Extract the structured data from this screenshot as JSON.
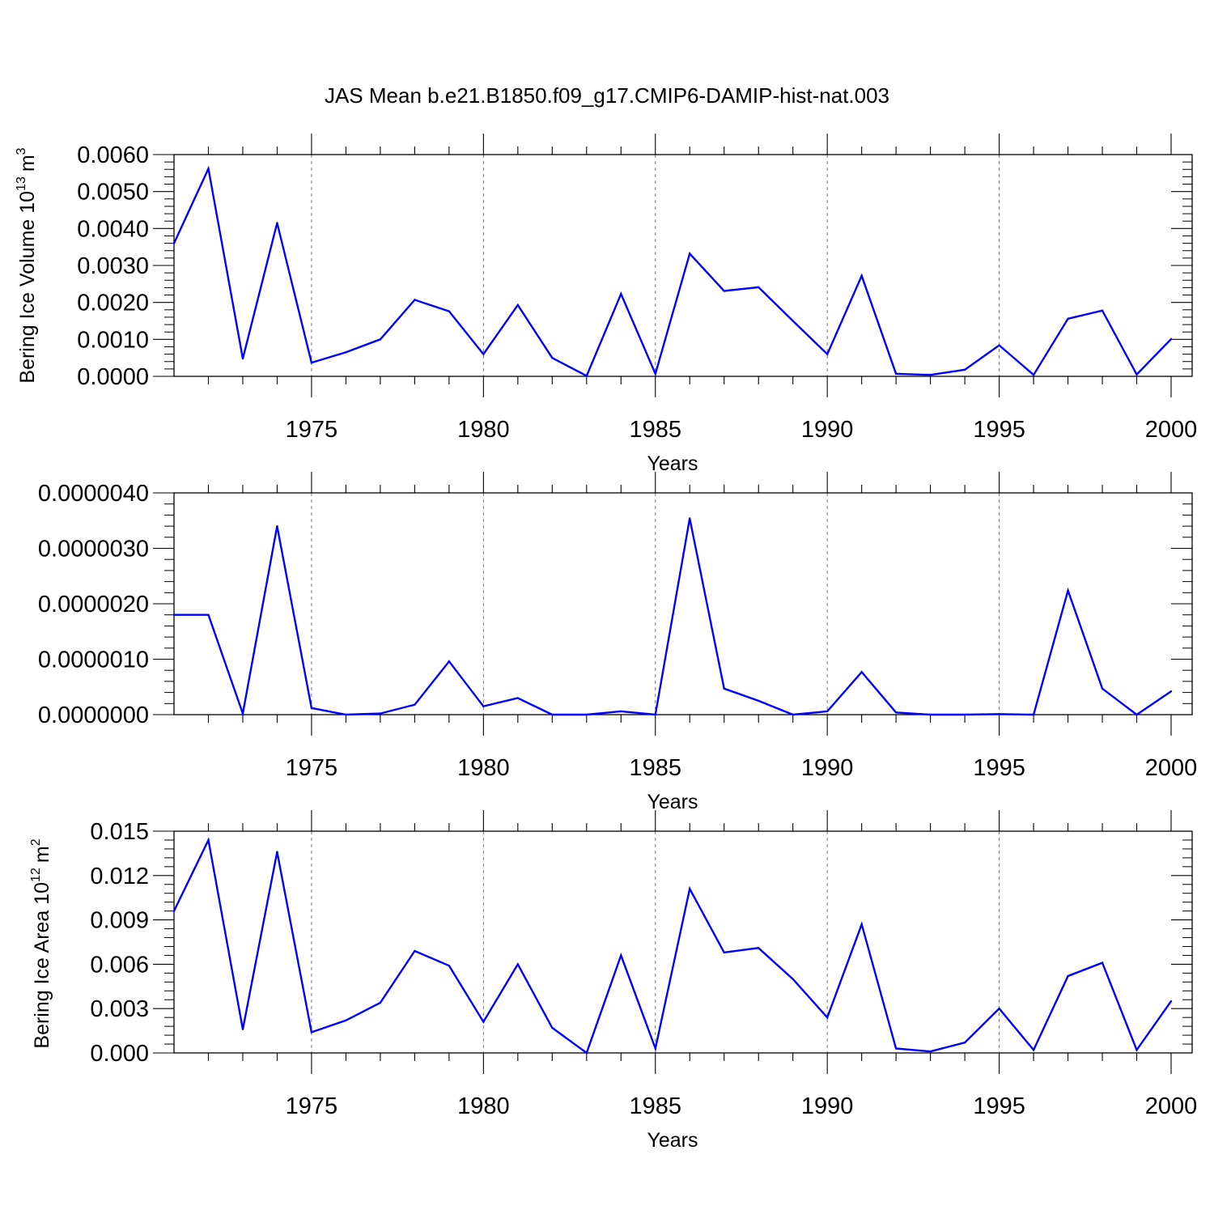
{
  "title": "JAS Mean b.e21.B1850.f09_g17.CMIP6-DAMIP-hist-nat.003",
  "line_color": "#0000ff",
  "chart_data": [
    {
      "type": "line",
      "ylabel": {
        "text": "Bering Ice Volume 10",
        "sup": "13",
        "unit": "m",
        "unit_sup": "3"
      },
      "xlabel": "Years",
      "x": [
        1971,
        1972,
        1973,
        1974,
        1975,
        1976,
        1977,
        1978,
        1979,
        1980,
        1981,
        1982,
        1983,
        1984,
        1985,
        1986,
        1987,
        1988,
        1989,
        1990,
        1991,
        1992,
        1993,
        1994,
        1995,
        1996,
        1997,
        1998,
        1999,
        2000
      ],
      "values": [
        0.0036,
        0.00562,
        0.00048,
        0.00415,
        0.00037,
        0.00065,
        0.001,
        0.00207,
        0.00176,
        0.0006,
        0.00193,
        0.0005,
        1e-05,
        0.00223,
        7e-05,
        0.00332,
        0.00231,
        0.00241,
        0.0015,
        0.0006,
        0.00272,
        7e-05,
        4e-05,
        0.00018,
        0.00084,
        4e-05,
        0.00156,
        0.00178,
        5e-05,
        0.00101
      ],
      "xlim": [
        1971,
        2000
      ],
      "ylim": [
        0,
        0.006
      ],
      "xticks": [
        1975,
        1980,
        1985,
        1990,
        1995,
        2000
      ],
      "xtick_labels": [
        "1975",
        "1980",
        "1985",
        "1990",
        "1995",
        "2000"
      ],
      "yticks": [
        0,
        0.001,
        0.002,
        0.003,
        0.004,
        0.005,
        0.006
      ],
      "ytick_labels": [
        "0.0000",
        "0.0010",
        "0.0020",
        "0.0030",
        "0.0040",
        "0.0050",
        "0.0060"
      ],
      "grid": "dashed vertical at major x ticks"
    },
    {
      "type": "line",
      "ylabel": null,
      "xlabel": "Years",
      "x": [
        1971,
        1972,
        1973,
        1974,
        1975,
        1976,
        1977,
        1978,
        1979,
        1980,
        1981,
        1982,
        1983,
        1984,
        1985,
        1986,
        1987,
        1988,
        1989,
        1990,
        1991,
        1992,
        1993,
        1994,
        1995,
        1996,
        1997,
        1998,
        1999,
        2000
      ],
      "values": [
        1.8e-06,
        1.8e-06,
        2e-08,
        3.4e-06,
        1.2e-07,
        0.0,
        2e-08,
        1.8e-07,
        9.6e-07,
        1.5e-07,
        3e-07,
        0.0,
        0.0,
        6e-08,
        0.0,
        3.54e-06,
        4.7e-07,
        2.5e-07,
        0.0,
        6e-08,
        7.7e-07,
        4e-08,
        0.0,
        0.0,
        1e-08,
        0.0,
        2.24e-06,
        4.7e-07,
        0.0,
        4.2e-07
      ],
      "xlim": [
        1971,
        2000
      ],
      "ylim": [
        0,
        4e-06
      ],
      "xticks": [
        1975,
        1980,
        1985,
        1990,
        1995,
        2000
      ],
      "xtick_labels": [
        "1975",
        "1980",
        "1985",
        "1990",
        "1995",
        "2000"
      ],
      "yticks": [
        0,
        1e-06,
        2e-06,
        3e-06,
        4e-06
      ],
      "ytick_labels": [
        "0.0000000",
        "0.0000010",
        "0.0000020",
        "0.0000030",
        "0.0000040"
      ],
      "grid": "dashed vertical at major x ticks"
    },
    {
      "type": "line",
      "ylabel": {
        "text": "Bering Ice Area 10",
        "sup": "12",
        "unit": "m",
        "unit_sup": "2"
      },
      "xlabel": "Years",
      "x": [
        1971,
        1972,
        1973,
        1974,
        1975,
        1976,
        1977,
        1978,
        1979,
        1980,
        1981,
        1982,
        1983,
        1984,
        1985,
        1986,
        1987,
        1988,
        1989,
        1990,
        1991,
        1992,
        1993,
        1994,
        1995,
        1996,
        1997,
        1998,
        1999,
        2000
      ],
      "values": [
        0.0096,
        0.0144,
        0.0016,
        0.0136,
        0.0014,
        0.0022,
        0.0034,
        0.0069,
        0.0059,
        0.0021,
        0.006,
        0.0017,
        0.0,
        0.0066,
        0.0003,
        0.0111,
        0.0068,
        0.0071,
        0.005,
        0.0024,
        0.0087,
        0.0003,
        0.0001,
        0.0007,
        0.003,
        0.0002,
        0.0052,
        0.0061,
        0.0002,
        0.0035
      ],
      "xlim": [
        1971,
        2000
      ],
      "ylim": [
        0,
        0.015
      ],
      "xticks": [
        1975,
        1980,
        1985,
        1990,
        1995,
        2000
      ],
      "xtick_labels": [
        "1975",
        "1980",
        "1985",
        "1990",
        "1995",
        "2000"
      ],
      "yticks": [
        0,
        0.003,
        0.006,
        0.009,
        0.012,
        0.015
      ],
      "ytick_labels": [
        "0.000",
        "0.003",
        "0.006",
        "0.009",
        "0.012",
        "0.015"
      ],
      "grid": "dashed vertical at major x ticks"
    }
  ]
}
